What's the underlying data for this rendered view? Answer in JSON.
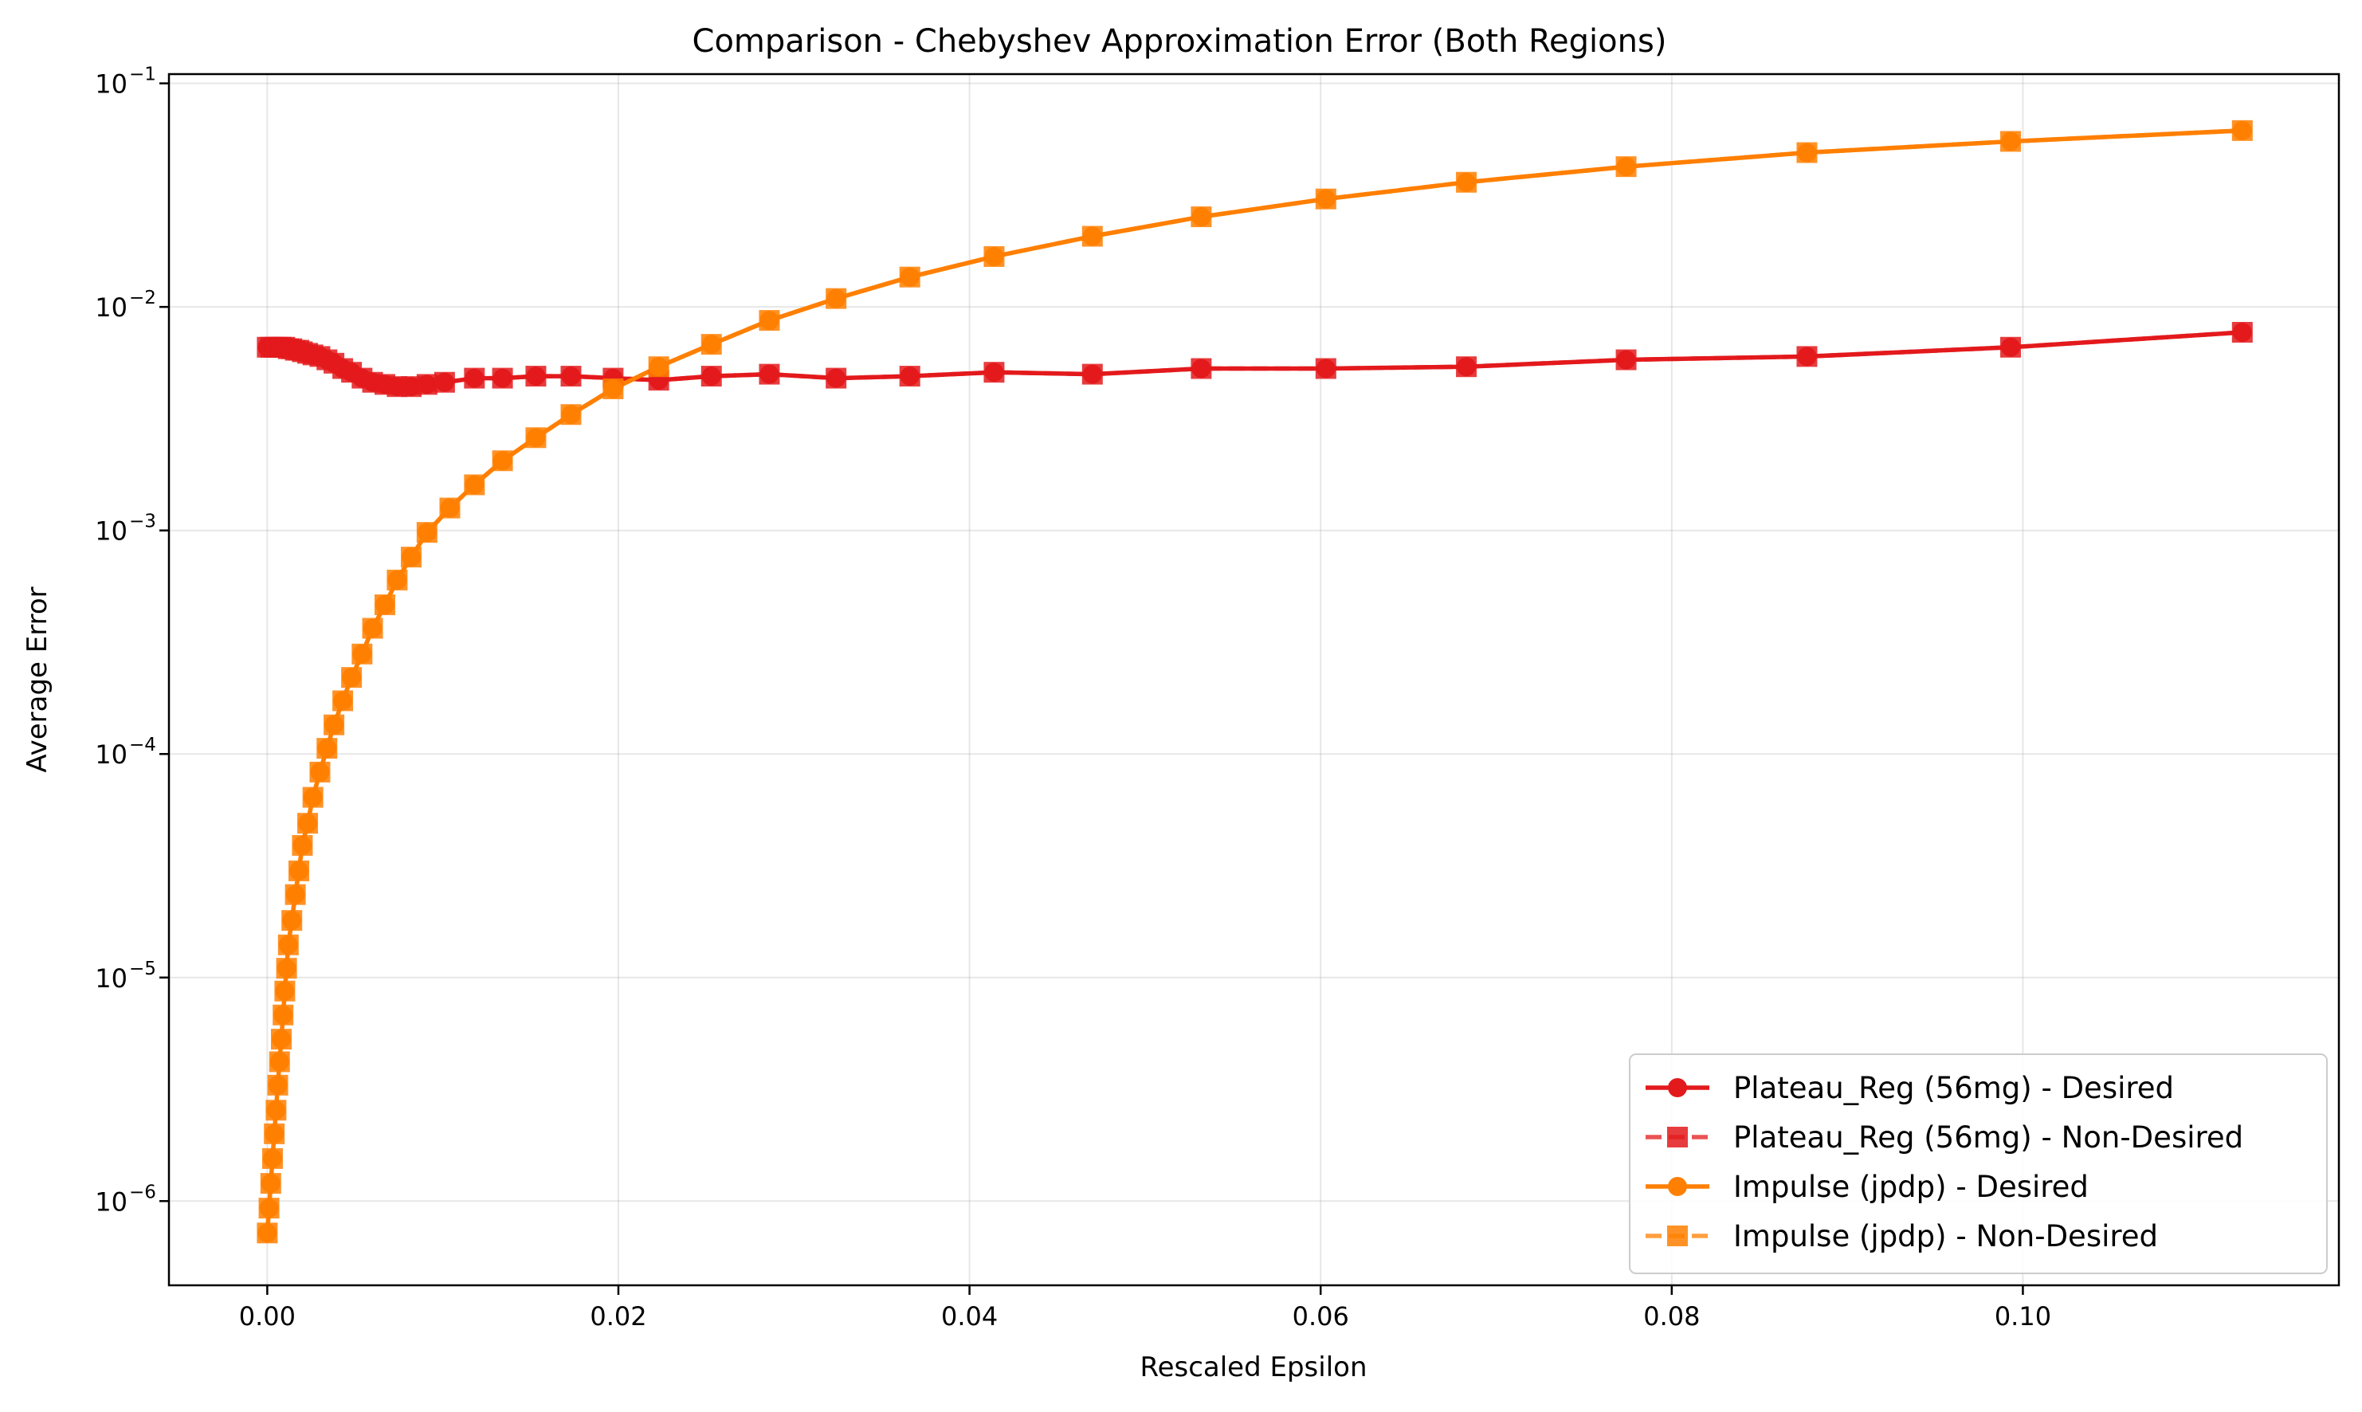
{
  "chart_data": {
    "type": "line",
    "title": "Comparison - Chebyshev Approximation Error (Both Regions)",
    "xlabel": "Rescaled Epsilon",
    "ylabel": "Average Error",
    "xlim": [
      -0.0056,
      0.118
    ],
    "ylim": [
      4.2e-07,
      0.11
    ],
    "yscale": "log",
    "grid": true,
    "legend_location": "lower-right",
    "x_ticks": [
      {
        "value": 0.0,
        "label": "0.00"
      },
      {
        "value": 0.02,
        "label": "0.02"
      },
      {
        "value": 0.04,
        "label": "0.04"
      },
      {
        "value": 0.06,
        "label": "0.06"
      },
      {
        "value": 0.08,
        "label": "0.08"
      },
      {
        "value": 0.1,
        "label": "0.10"
      }
    ],
    "y_ticks": [
      {
        "value": 1e-06,
        "base": "10",
        "exp": "−6"
      },
      {
        "value": 1e-05,
        "base": "10",
        "exp": "−5"
      },
      {
        "value": 0.0001,
        "base": "10",
        "exp": "−4"
      },
      {
        "value": 0.001,
        "base": "10",
        "exp": "−3"
      },
      {
        "value": 0.01,
        "base": "10",
        "exp": "−2"
      },
      {
        "value": 0.1,
        "base": "10",
        "exp": "−1"
      }
    ],
    "series": [
      {
        "name": "Plateau_Reg (56mg) - Desired",
        "color": "#e31a1c",
        "marker": "circle",
        "linestyle": "solid",
        "x": [
          0.0,
          0.0002,
          0.0004,
          0.0006,
          0.0008,
          0.001,
          0.0012,
          0.0014,
          0.0016,
          0.0018,
          0.002,
          0.0023,
          0.0026,
          0.003,
          0.0034,
          0.0038,
          0.0043,
          0.0048,
          0.0054,
          0.006,
          0.0067,
          0.0074,
          0.0082,
          0.0091,
          0.0101,
          0.0118,
          0.0134,
          0.0153,
          0.0173,
          0.0197,
          0.0223,
          0.0253,
          0.0286,
          0.0324,
          0.0366,
          0.0414,
          0.047,
          0.0532,
          0.0603,
          0.0683,
          0.0774,
          0.0877,
          0.0993,
          0.1125
        ],
        "y": [
          0.0066,
          0.0066,
          0.0066,
          0.0066,
          0.0066,
          0.0066,
          0.0065,
          0.0065,
          0.0064,
          0.0064,
          0.0063,
          0.0062,
          0.0061,
          0.006,
          0.0058,
          0.0056,
          0.0053,
          0.0051,
          0.0048,
          0.0046,
          0.0045,
          0.0044,
          0.0044,
          0.0045,
          0.0046,
          0.0048,
          0.0048,
          0.0049,
          0.0049,
          0.0048,
          0.0047,
          0.0049,
          0.005,
          0.0048,
          0.0049,
          0.0051,
          0.005,
          0.0053,
          0.0053,
          0.0054,
          0.0058,
          0.006,
          0.0066,
          0.0077
        ]
      },
      {
        "name": "Plateau_Reg (56mg) - Non-Desired",
        "color": "#e31a1c",
        "marker": "square",
        "linestyle": "dashed",
        "x": [
          0.0,
          0.0002,
          0.0004,
          0.0006,
          0.0008,
          0.001,
          0.0012,
          0.0014,
          0.0016,
          0.0018,
          0.002,
          0.0023,
          0.0026,
          0.003,
          0.0034,
          0.0038,
          0.0043,
          0.0048,
          0.0054,
          0.006,
          0.0067,
          0.0074,
          0.0082,
          0.0091,
          0.0101,
          0.0118,
          0.0134,
          0.0153,
          0.0173,
          0.0197,
          0.0223,
          0.0253,
          0.0286,
          0.0324,
          0.0366,
          0.0414,
          0.047,
          0.0532,
          0.0603,
          0.0683,
          0.0774,
          0.0877,
          0.0993,
          0.1125
        ],
        "y": [
          0.0066,
          0.0066,
          0.0066,
          0.0066,
          0.0066,
          0.0066,
          0.0065,
          0.0065,
          0.0064,
          0.0064,
          0.0063,
          0.0062,
          0.0061,
          0.006,
          0.0058,
          0.0056,
          0.0053,
          0.0051,
          0.0048,
          0.0046,
          0.0045,
          0.0044,
          0.0044,
          0.0045,
          0.0046,
          0.0048,
          0.0048,
          0.0049,
          0.0049,
          0.0048,
          0.0047,
          0.0049,
          0.005,
          0.0048,
          0.0049,
          0.0051,
          0.005,
          0.0053,
          0.0053,
          0.0054,
          0.0058,
          0.006,
          0.0066,
          0.0077
        ]
      },
      {
        "name": "Impulse (jpdp) - Desired",
        "color": "#ff7f00",
        "marker": "circle",
        "linestyle": "solid",
        "x": [
          0.0,
          0.0001,
          0.0002,
          0.0003,
          0.0004,
          0.0005,
          0.0006,
          0.0007,
          0.0008,
          0.0009,
          0.001,
          0.0011,
          0.0012,
          0.0014,
          0.0016,
          0.0018,
          0.002,
          0.0023,
          0.0026,
          0.003,
          0.0034,
          0.0038,
          0.0043,
          0.0048,
          0.0054,
          0.006,
          0.0067,
          0.0074,
          0.0082,
          0.0091,
          0.0104,
          0.0118,
          0.0134,
          0.0153,
          0.0173,
          0.0197,
          0.0223,
          0.0253,
          0.0286,
          0.0324,
          0.0366,
          0.0414,
          0.047,
          0.0532,
          0.0603,
          0.0683,
          0.0774,
          0.0877,
          0.0993,
          0.1125
        ],
        "y": [
          7.2e-07,
          9.3e-07,
          1.2e-06,
          1.55e-06,
          2e-06,
          2.55e-06,
          3.3e-06,
          4.2e-06,
          5.3e-06,
          6.8e-06,
          8.7e-06,
          1.1e-05,
          1.4e-05,
          1.8e-05,
          2.35e-05,
          3e-05,
          3.9e-05,
          4.9e-05,
          6.4e-05,
          8.3e-05,
          0.000106,
          0.000135,
          0.000173,
          0.00022,
          0.00028,
          0.000365,
          0.000465,
          0.0006,
          0.00076,
          0.00098,
          0.00126,
          0.0016,
          0.00205,
          0.0026,
          0.0033,
          0.0043,
          0.0054,
          0.0068,
          0.0087,
          0.0109,
          0.0136,
          0.0168,
          0.0207,
          0.0253,
          0.0304,
          0.0361,
          0.0424,
          0.049,
          0.055,
          0.0615
        ]
      },
      {
        "name": "Impulse (jpdp) - Non-Desired",
        "color": "#ff7f00",
        "marker": "square",
        "linestyle": "dashed",
        "x": [
          0.0,
          0.0001,
          0.0002,
          0.0003,
          0.0004,
          0.0005,
          0.0006,
          0.0007,
          0.0008,
          0.0009,
          0.001,
          0.0011,
          0.0012,
          0.0014,
          0.0016,
          0.0018,
          0.002,
          0.0023,
          0.0026,
          0.003,
          0.0034,
          0.0038,
          0.0043,
          0.0048,
          0.0054,
          0.006,
          0.0067,
          0.0074,
          0.0082,
          0.0091,
          0.0104,
          0.0118,
          0.0134,
          0.0153,
          0.0173,
          0.0197,
          0.0223,
          0.0253,
          0.0286,
          0.0324,
          0.0366,
          0.0414,
          0.047,
          0.0532,
          0.0603,
          0.0683,
          0.0774,
          0.0877,
          0.0993,
          0.1125
        ],
        "y": [
          7.2e-07,
          9.3e-07,
          1.2e-06,
          1.55e-06,
          2e-06,
          2.55e-06,
          3.3e-06,
          4.2e-06,
          5.3e-06,
          6.8e-06,
          8.7e-06,
          1.1e-05,
          1.4e-05,
          1.8e-05,
          2.35e-05,
          3e-05,
          3.9e-05,
          4.9e-05,
          6.4e-05,
          8.3e-05,
          0.000106,
          0.000135,
          0.000173,
          0.00022,
          0.00028,
          0.000365,
          0.000465,
          0.0006,
          0.00076,
          0.00098,
          0.00126,
          0.0016,
          0.00205,
          0.0026,
          0.0033,
          0.0043,
          0.0054,
          0.0068,
          0.0087,
          0.0109,
          0.0136,
          0.0168,
          0.0207,
          0.0253,
          0.0304,
          0.0361,
          0.0424,
          0.049,
          0.055,
          0.0615
        ]
      }
    ]
  }
}
